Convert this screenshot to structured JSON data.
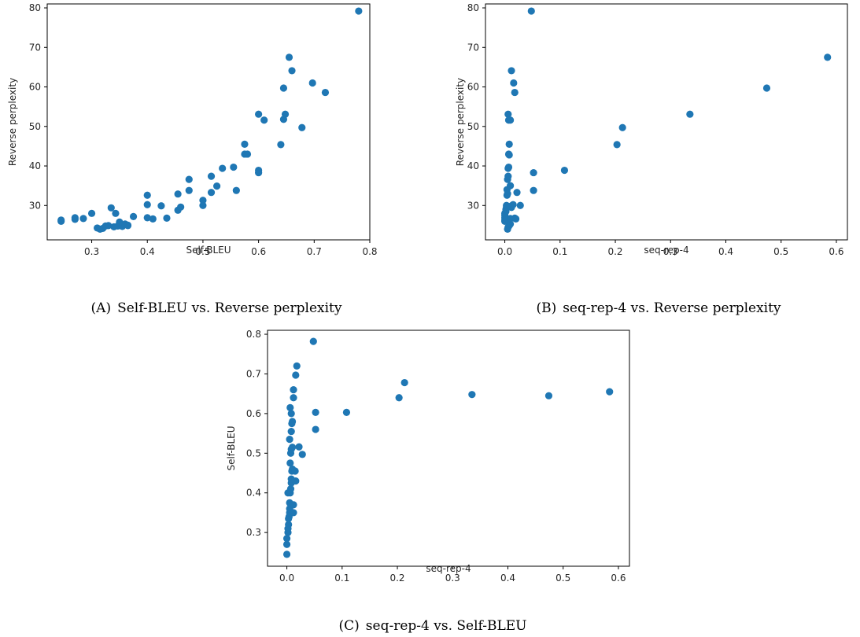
{
  "chart_data": [
    {
      "type": "scatter",
      "id": "a",
      "caption_label": "(A)",
      "caption_text": "Self-BLEU vs. Reverse perplexity",
      "xlabel": "Self-BLEU",
      "ylabel": "Reverse perplexity",
      "xlim": [
        0.22,
        0.8
      ],
      "ylim": [
        21.3,
        81
      ],
      "xticks": [
        0.3,
        0.4,
        0.5,
        0.6,
        0.7,
        0.8
      ],
      "yticks": [
        30,
        40,
        50,
        60,
        70,
        80
      ],
      "xtick_labels": [
        "0.3",
        "0.4",
        "0.5",
        "0.6",
        "0.7",
        "0.8"
      ],
      "ytick_labels": [
        "30",
        "40",
        "50",
        "60",
        "70",
        "80"
      ],
      "marker_color": "#1f77b4",
      "points": [
        [
          0.245,
          26.3
        ],
        [
          0.245,
          26.0
        ],
        [
          0.27,
          26.5
        ],
        [
          0.27,
          26.9
        ],
        [
          0.285,
          26.7
        ],
        [
          0.3,
          28.0
        ],
        [
          0.31,
          24.3
        ],
        [
          0.315,
          24.0
        ],
        [
          0.32,
          24.2
        ],
        [
          0.325,
          24.8
        ],
        [
          0.33,
          24.9
        ],
        [
          0.335,
          29.4
        ],
        [
          0.34,
          24.6
        ],
        [
          0.343,
          28.0
        ],
        [
          0.347,
          24.8
        ],
        [
          0.35,
          25.8
        ],
        [
          0.355,
          24.7
        ],
        [
          0.36,
          25.3
        ],
        [
          0.365,
          25.0
        ],
        [
          0.365,
          24.9
        ],
        [
          0.375,
          27.2
        ],
        [
          0.4,
          32.6
        ],
        [
          0.4,
          30.2
        ],
        [
          0.4,
          26.9
        ],
        [
          0.41,
          26.6
        ],
        [
          0.425,
          29.9
        ],
        [
          0.435,
          26.8
        ],
        [
          0.455,
          32.9
        ],
        [
          0.455,
          28.8
        ],
        [
          0.46,
          29.6
        ],
        [
          0.475,
          36.6
        ],
        [
          0.475,
          33.8
        ],
        [
          0.5,
          30.0
        ],
        [
          0.5,
          31.3
        ],
        [
          0.515,
          37.4
        ],
        [
          0.515,
          33.3
        ],
        [
          0.525,
          34.9
        ],
        [
          0.535,
          39.4
        ],
        [
          0.555,
          39.7
        ],
        [
          0.56,
          33.8
        ],
        [
          0.575,
          45.5
        ],
        [
          0.575,
          43.0
        ],
        [
          0.58,
          43.0
        ],
        [
          0.6,
          38.3
        ],
        [
          0.6,
          38.9
        ],
        [
          0.6,
          53.1
        ],
        [
          0.61,
          51.6
        ],
        [
          0.64,
          45.4
        ],
        [
          0.645,
          51.8
        ],
        [
          0.645,
          59.7
        ],
        [
          0.648,
          53.1
        ],
        [
          0.655,
          67.5
        ],
        [
          0.66,
          64.1
        ],
        [
          0.678,
          49.7
        ],
        [
          0.697,
          61.0
        ],
        [
          0.72,
          58.6
        ],
        [
          0.78,
          79.2
        ]
      ]
    },
    {
      "type": "scatter",
      "id": "b",
      "caption_label": "(B)",
      "caption_text": "seq-rep-4 vs. Reverse perplexity",
      "xlabel": "seq-rep-4",
      "ylabel": "Reverse perplexity",
      "xlim": [
        -0.035,
        0.62
      ],
      "ylim": [
        21.3,
        81
      ],
      "xticks": [
        0.0,
        0.1,
        0.2,
        0.3,
        0.4,
        0.5,
        0.6
      ],
      "yticks": [
        30,
        40,
        50,
        60,
        70,
        80
      ],
      "xtick_labels": [
        "0.0",
        "0.1",
        "0.2",
        "0.3",
        "0.4",
        "0.5",
        "0.6"
      ],
      "ytick_labels": [
        "30",
        "40",
        "50",
        "60",
        "70",
        "80"
      ],
      "marker_color": "#1f77b4",
      "points": [
        [
          0.0,
          26.3
        ],
        [
          0.0,
          26.0
        ],
        [
          0.0,
          26.9
        ],
        [
          0.0,
          27.5
        ],
        [
          0.0,
          28.0
        ],
        [
          0.002,
          28.5
        ],
        [
          0.002,
          29.0
        ],
        [
          0.003,
          29.6
        ],
        [
          0.003,
          30.0
        ],
        [
          0.004,
          32.6
        ],
        [
          0.004,
          34.0
        ],
        [
          0.005,
          33.0
        ],
        [
          0.005,
          36.6
        ],
        [
          0.006,
          37.4
        ],
        [
          0.006,
          39.4
        ],
        [
          0.007,
          39.7
        ],
        [
          0.007,
          43.0
        ],
        [
          0.008,
          42.8
        ],
        [
          0.008,
          45.5
        ],
        [
          0.007,
          51.6
        ],
        [
          0.006,
          53.1
        ],
        [
          0.01,
          51.6
        ],
        [
          0.005,
          24.0
        ],
        [
          0.006,
          24.5
        ],
        [
          0.008,
          24.9
        ],
        [
          0.01,
          25.3
        ],
        [
          0.01,
          26.7
        ],
        [
          0.012,
          29.5
        ],
        [
          0.012,
          29.9
        ],
        [
          0.01,
          35.0
        ],
        [
          0.015,
          30.2
        ],
        [
          0.018,
          26.8
        ],
        [
          0.02,
          26.6
        ],
        [
          0.022,
          33.3
        ],
        [
          0.028,
          30.0
        ],
        [
          0.012,
          64.1
        ],
        [
          0.016,
          61.0
        ],
        [
          0.018,
          58.6
        ],
        [
          0.048,
          79.2
        ],
        [
          0.052,
          38.3
        ],
        [
          0.052,
          33.8
        ],
        [
          0.108,
          38.9
        ],
        [
          0.203,
          45.4
        ],
        [
          0.213,
          49.7
        ],
        [
          0.335,
          53.1
        ],
        [
          0.474,
          59.7
        ],
        [
          0.584,
          67.5
        ]
      ]
    },
    {
      "type": "scatter",
      "id": "c",
      "caption_label": "(C)",
      "caption_text": "seq-rep-4 vs. Self-BLEU",
      "xlabel": "seq-rep-4",
      "ylabel": "Self-BLEU",
      "xlim": [
        -0.035,
        0.62
      ],
      "ylim": [
        0.215,
        0.81
      ],
      "xticks": [
        0.0,
        0.1,
        0.2,
        0.3,
        0.4,
        0.5,
        0.6
      ],
      "yticks": [
        0.3,
        0.4,
        0.5,
        0.6,
        0.7,
        0.8
      ],
      "xtick_labels": [
        "0.0",
        "0.1",
        "0.2",
        "0.3",
        "0.4",
        "0.5",
        "0.6"
      ],
      "ytick_labels": [
        "0.3",
        "0.4",
        "0.5",
        "0.6",
        "0.7",
        "0.8"
      ],
      "marker_color": "#1f77b4",
      "points": [
        [
          0.0,
          0.245
        ],
        [
          0.0,
          0.27
        ],
        [
          0.0,
          0.285
        ],
        [
          0.002,
          0.3
        ],
        [
          0.002,
          0.31
        ],
        [
          0.003,
          0.32
        ],
        [
          0.003,
          0.335
        ],
        [
          0.004,
          0.34
        ],
        [
          0.005,
          0.35
        ],
        [
          0.005,
          0.36
        ],
        [
          0.005,
          0.375
        ],
        [
          0.002,
          0.4
        ],
        [
          0.006,
          0.4
        ],
        [
          0.007,
          0.41
        ],
        [
          0.008,
          0.425
        ],
        [
          0.008,
          0.435
        ],
        [
          0.009,
          0.455
        ],
        [
          0.01,
          0.46
        ],
        [
          0.006,
          0.475
        ],
        [
          0.007,
          0.5
        ],
        [
          0.008,
          0.51
        ],
        [
          0.01,
          0.515
        ],
        [
          0.005,
          0.535
        ],
        [
          0.008,
          0.555
        ],
        [
          0.009,
          0.575
        ],
        [
          0.01,
          0.58
        ],
        [
          0.008,
          0.6
        ],
        [
          0.006,
          0.615
        ],
        [
          0.012,
          0.64
        ],
        [
          0.012,
          0.66
        ],
        [
          0.016,
          0.697
        ],
        [
          0.018,
          0.72
        ],
        [
          0.015,
          0.455
        ],
        [
          0.016,
          0.43
        ],
        [
          0.022,
          0.516
        ],
        [
          0.028,
          0.497
        ],
        [
          0.012,
          0.35
        ],
        [
          0.012,
          0.37
        ],
        [
          0.048,
          0.782
        ],
        [
          0.052,
          0.603
        ],
        [
          0.052,
          0.56
        ],
        [
          0.108,
          0.603
        ],
        [
          0.203,
          0.64
        ],
        [
          0.213,
          0.678
        ],
        [
          0.335,
          0.648
        ],
        [
          0.474,
          0.645
        ],
        [
          0.584,
          0.655
        ]
      ]
    }
  ]
}
